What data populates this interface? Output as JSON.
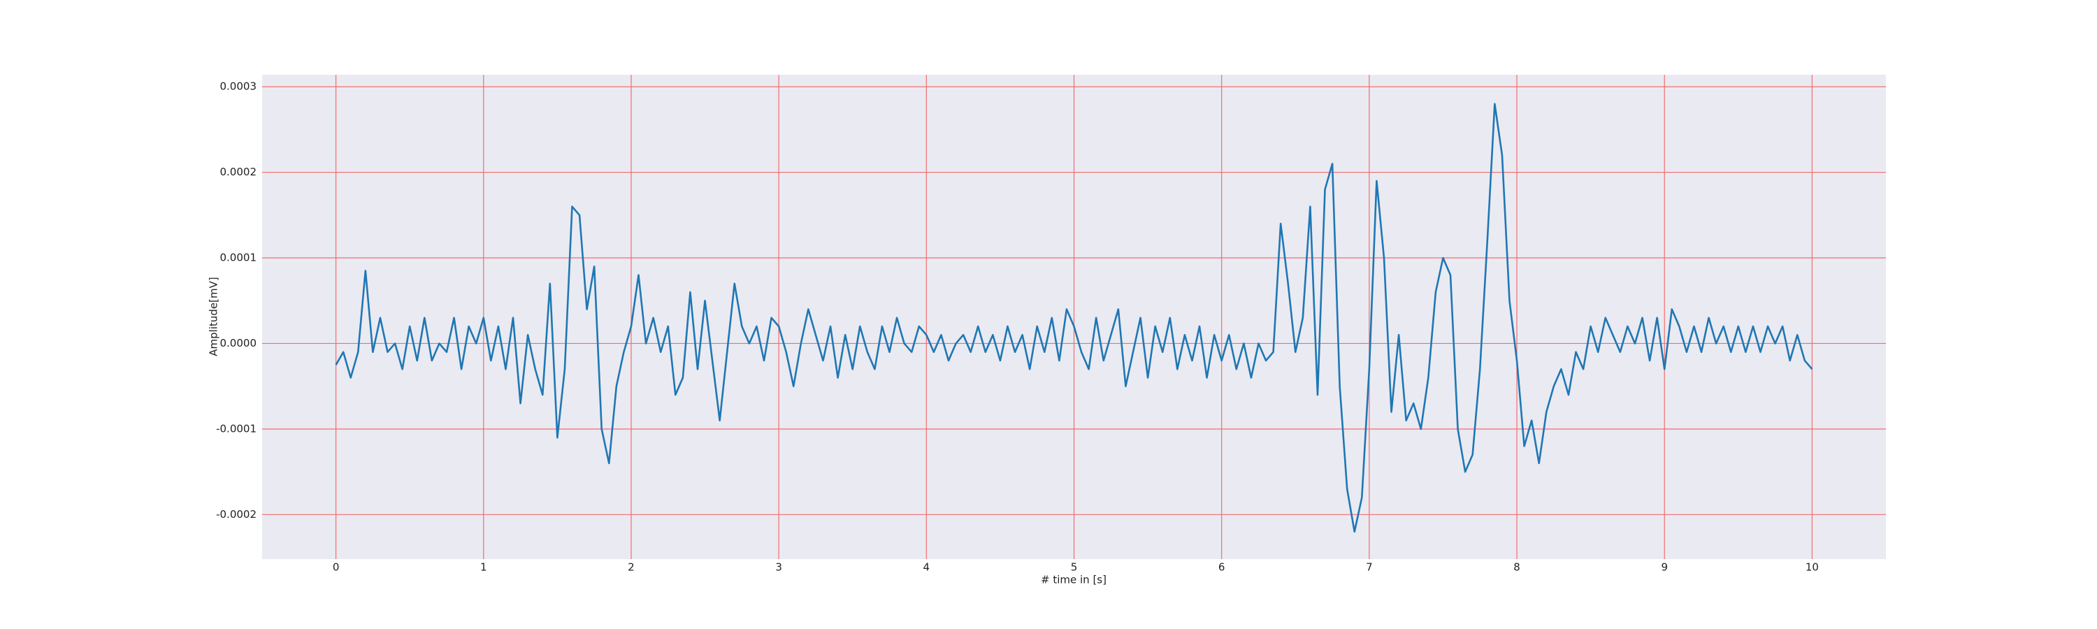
{
  "chart_data": {
    "type": "line",
    "xlabel": "# time in [s]",
    "ylabel": "Amplitude[mV]",
    "xlim": [
      -0.5,
      10.5
    ],
    "xticks": [
      0,
      1,
      2,
      3,
      4,
      5,
      6,
      7,
      8,
      9,
      10
    ],
    "ylim": [
      -0.000252,
      0.000314
    ],
    "yticks": [
      -0.0002,
      -0.0001,
      {
        "value": 0,
        "label": "0.0000"
      },
      0.0001,
      0.0002,
      0.0003
    ],
    "grid": true,
    "series": [
      {
        "color": "#1f77b4",
        "x": [
          0,
          0.05,
          0.1,
          0.15,
          0.2,
          0.25,
          0.3,
          0.35,
          0.4,
          0.45,
          0.5,
          0.55,
          0.6,
          0.65,
          0.7,
          0.75,
          0.8,
          0.85,
          0.9,
          0.95,
          1,
          1.05,
          1.1,
          1.15,
          1.2,
          1.25,
          1.3,
          1.35,
          1.4,
          1.45,
          1.5,
          1.55,
          1.6,
          1.65,
          1.7,
          1.75,
          1.8,
          1.85,
          1.9,
          1.95,
          2,
          2.05,
          2.1,
          2.15,
          2.2,
          2.25,
          2.3,
          2.35,
          2.4,
          2.45,
          2.5,
          2.55,
          2.6,
          2.65,
          2.7,
          2.75,
          2.8,
          2.85,
          2.9,
          2.95,
          3,
          3.05,
          3.1,
          3.15,
          3.2,
          3.25,
          3.3,
          3.35,
          3.4,
          3.45,
          3.5,
          3.55,
          3.6,
          3.65,
          3.7,
          3.75,
          3.8,
          3.85,
          3.9,
          3.95,
          4,
          4.05,
          4.1,
          4.15,
          4.2,
          4.25,
          4.3,
          4.35,
          4.4,
          4.45,
          4.5,
          4.55,
          4.6,
          4.65,
          4.7,
          4.75,
          4.8,
          4.85,
          4.9,
          4.95,
          5,
          5.05,
          5.1,
          5.15,
          5.2,
          5.25,
          5.3,
          5.35,
          5.4,
          5.45,
          5.5,
          5.55,
          5.6,
          5.65,
          5.7,
          5.75,
          5.8,
          5.85,
          5.9,
          5.95,
          6,
          6.05,
          6.1,
          6.15,
          6.2,
          6.25,
          6.3,
          6.35,
          6.4,
          6.45,
          6.5,
          6.55,
          6.6,
          6.65,
          6.7,
          6.75,
          6.8,
          6.85,
          6.9,
          6.95,
          7,
          7.05,
          7.1,
          7.15,
          7.2,
          7.25,
          7.3,
          7.35,
          7.4,
          7.45,
          7.5,
          7.55,
          7.6,
          7.65,
          7.7,
          7.75,
          7.8,
          7.85,
          7.9,
          7.95,
          8,
          8.05,
          8.1,
          8.15,
          8.2,
          8.25,
          8.3,
          8.35,
          8.4,
          8.45,
          8.5,
          8.55,
          8.6,
          8.65,
          8.7,
          8.75,
          8.8,
          8.85,
          8.9,
          8.95,
          9,
          9.05,
          9.1,
          9.15,
          9.2,
          9.25,
          9.3,
          9.35,
          9.4,
          9.45,
          9.5,
          9.55,
          9.6,
          9.65,
          9.7,
          9.75,
          9.8,
          9.85,
          9.9,
          9.95,
          10
        ],
        "values": [
          -2.5e-05,
          -1e-05,
          -4e-05,
          -1e-05,
          8.5e-05,
          -1e-05,
          3e-05,
          -1e-05,
          0,
          -3e-05,
          2e-05,
          -2e-05,
          3e-05,
          -2e-05,
          0,
          -1e-05,
          3e-05,
          -3e-05,
          2e-05,
          0,
          3e-05,
          -2e-05,
          2e-05,
          -3e-05,
          3e-05,
          -7e-05,
          1e-05,
          -3e-05,
          -6e-05,
          7e-05,
          -0.00011,
          -3e-05,
          0.00016,
          0.00015,
          4e-05,
          9e-05,
          -0.0001,
          -0.00014,
          -5e-05,
          -1e-05,
          2e-05,
          8e-05,
          0,
          3e-05,
          -1e-05,
          2e-05,
          -6e-05,
          -4e-05,
          6e-05,
          -3e-05,
          5e-05,
          -2e-05,
          -9e-05,
          -1e-05,
          7e-05,
          2e-05,
          0,
          2e-05,
          -2e-05,
          3e-05,
          2e-05,
          -1e-05,
          -5e-05,
          0,
          4e-05,
          1e-05,
          -2e-05,
          2e-05,
          -4e-05,
          1e-05,
          -3e-05,
          2e-05,
          -1e-05,
          -3e-05,
          2e-05,
          -1e-05,
          3e-05,
          0,
          -1e-05,
          2e-05,
          1e-05,
          -1e-05,
          1e-05,
          -2e-05,
          0,
          1e-05,
          -1e-05,
          2e-05,
          -1e-05,
          1e-05,
          -2e-05,
          2e-05,
          -1e-05,
          1e-05,
          -3e-05,
          2e-05,
          -1e-05,
          3e-05,
          -2e-05,
          4e-05,
          2e-05,
          -1e-05,
          -3e-05,
          3e-05,
          -2e-05,
          1e-05,
          4e-05,
          -5e-05,
          -1e-05,
          3e-05,
          -4e-05,
          2e-05,
          -1e-05,
          3e-05,
          -3e-05,
          1e-05,
          -2e-05,
          2e-05,
          -4e-05,
          1e-05,
          -2e-05,
          1e-05,
          -3e-05,
          0,
          -4e-05,
          0,
          -2e-05,
          -1e-05,
          0.00014,
          7e-05,
          -1e-05,
          3e-05,
          0.00016,
          -6e-05,
          0.00018,
          0.00021,
          -5e-05,
          -0.00017,
          -0.00022,
          -0.00018,
          -3e-05,
          0.00019,
          0.0001,
          -8e-05,
          1e-05,
          -9e-05,
          -7e-05,
          -0.0001,
          -4e-05,
          6e-05,
          0.0001,
          8e-05,
          -0.0001,
          -0.00015,
          -0.00013,
          -3e-05,
          0.00012,
          0.00028,
          0.00022,
          5e-05,
          -2e-05,
          -0.00012,
          -9e-05,
          -0.00014,
          -8e-05,
          -5e-05,
          -3e-05,
          -6e-05,
          -1e-05,
          -3e-05,
          2e-05,
          -1e-05,
          3e-05,
          1e-05,
          -1e-05,
          2e-05,
          0,
          3e-05,
          -2e-05,
          3e-05,
          -3e-05,
          4e-05,
          2e-05,
          -1e-05,
          2e-05,
          -1e-05,
          3e-05,
          0,
          2e-05,
          -1e-05,
          2e-05,
          -1e-05,
          2e-05,
          -1e-05,
          2e-05,
          0,
          2e-05,
          -2e-05,
          1e-05,
          -2e-05,
          -3e-05
        ]
      }
    ]
  }
}
